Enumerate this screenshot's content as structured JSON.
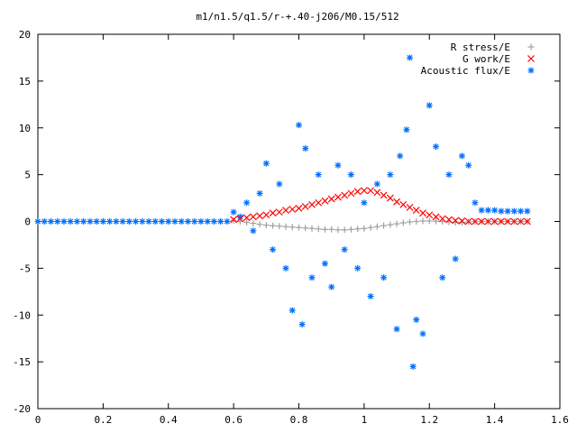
{
  "chart_data": {
    "type": "scatter",
    "title": "m1/n1.5/q1.5/r-+.40-j206/M0.15/512",
    "xlabel": "",
    "ylabel": "",
    "xlim": [
      0,
      1.6
    ],
    "ylim": [
      -20,
      20
    ],
    "x_ticks": [
      "0",
      "0.2",
      "0.4",
      "0.6",
      "0.8",
      "1",
      "1.2",
      "1.4",
      "1.6"
    ],
    "y_ticks": [
      "20",
      "15",
      "10",
      "5",
      "0",
      "-5",
      "-10",
      "-15",
      "-20"
    ],
    "legend_position": "top-right",
    "grid": false,
    "series": [
      {
        "name": "R stress/E",
        "marker": "plus",
        "color": "#a0a0a0",
        "x": [
          0.6,
          0.62,
          0.64,
          0.66,
          0.68,
          0.7,
          0.72,
          0.74,
          0.76,
          0.78,
          0.8,
          0.82,
          0.84,
          0.86,
          0.88,
          0.9,
          0.92,
          0.94,
          0.96,
          0.98,
          1.0,
          1.02,
          1.04,
          1.06,
          1.08,
          1.1,
          1.12,
          1.14,
          1.16,
          1.18,
          1.2,
          1.22,
          1.24,
          1.26,
          1.28,
          1.3,
          1.32,
          1.34,
          1.36,
          1.38,
          1.4,
          1.42,
          1.44,
          1.46,
          1.48,
          1.5
        ],
        "y": [
          0.1,
          0.0,
          -0.1,
          -0.2,
          -0.3,
          -0.4,
          -0.45,
          -0.5,
          -0.55,
          -0.6,
          -0.65,
          -0.7,
          -0.75,
          -0.8,
          -0.85,
          -0.85,
          -0.9,
          -0.9,
          -0.85,
          -0.8,
          -0.75,
          -0.65,
          -0.55,
          -0.45,
          -0.35,
          -0.25,
          -0.15,
          -0.05,
          0.0,
          0.05,
          0.05,
          0.03,
          0.0,
          -0.05,
          -0.1,
          -0.1,
          -0.05,
          0.0,
          0.0,
          0.0,
          0.0,
          0.0,
          0.0,
          0.0,
          0.0,
          0.0
        ]
      },
      {
        "name": "G work/E",
        "marker": "cross",
        "color": "#ff0000",
        "x": [
          0.6,
          0.62,
          0.64,
          0.66,
          0.68,
          0.7,
          0.72,
          0.74,
          0.76,
          0.78,
          0.8,
          0.82,
          0.84,
          0.86,
          0.88,
          0.9,
          0.92,
          0.94,
          0.96,
          0.98,
          1.0,
          1.02,
          1.04,
          1.06,
          1.08,
          1.1,
          1.12,
          1.14,
          1.16,
          1.18,
          1.2,
          1.22,
          1.24,
          1.26,
          1.28,
          1.3,
          1.32,
          1.34,
          1.36,
          1.38,
          1.4,
          1.42,
          1.44,
          1.46,
          1.48,
          1.5
        ],
        "y": [
          0.2,
          0.3,
          0.4,
          0.5,
          0.6,
          0.7,
          0.9,
          1.0,
          1.2,
          1.3,
          1.4,
          1.6,
          1.8,
          2.0,
          2.2,
          2.4,
          2.6,
          2.8,
          3.0,
          3.2,
          3.3,
          3.3,
          3.1,
          2.8,
          2.5,
          2.1,
          1.8,
          1.5,
          1.2,
          0.9,
          0.7,
          0.5,
          0.3,
          0.2,
          0.1,
          0.05,
          0.0,
          0.0,
          0.0,
          0.0,
          0.0,
          0.0,
          0.0,
          0.0,
          0.0,
          0.0
        ]
      },
      {
        "name": "Acoustic flux/E",
        "marker": "star",
        "color": "#0070ff",
        "x": [
          0.0,
          0.02,
          0.04,
          0.06,
          0.08,
          0.1,
          0.12,
          0.14,
          0.16,
          0.18,
          0.2,
          0.22,
          0.24,
          0.26,
          0.28,
          0.3,
          0.32,
          0.34,
          0.36,
          0.38,
          0.4,
          0.42,
          0.44,
          0.46,
          0.48,
          0.5,
          0.52,
          0.54,
          0.56,
          0.58,
          0.6,
          0.62,
          0.64,
          0.66,
          0.68,
          0.7,
          0.72,
          0.74,
          0.76,
          0.78,
          0.8,
          0.81,
          0.82,
          0.84,
          0.86,
          0.88,
          0.9,
          0.92,
          0.94,
          0.96,
          0.98,
          1.0,
          1.02,
          1.04,
          1.06,
          1.08,
          1.1,
          1.11,
          1.13,
          1.14,
          1.15,
          1.16,
          1.18,
          1.2,
          1.22,
          1.24,
          1.26,
          1.28,
          1.3,
          1.32,
          1.34,
          1.36,
          1.38,
          1.4,
          1.42,
          1.44,
          1.46,
          1.48,
          1.5
        ],
        "y": [
          0,
          0,
          0,
          0,
          0,
          0,
          0,
          0,
          0,
          0,
          0,
          0,
          0,
          0,
          0,
          0,
          0,
          0,
          0,
          0,
          0,
          0,
          0,
          0,
          0,
          0,
          0,
          0,
          0,
          0,
          1.0,
          0.5,
          2.0,
          -1.0,
          3.0,
          6.2,
          -3.0,
          4.0,
          -5.0,
          -9.5,
          10.3,
          -11.0,
          7.8,
          -6.0,
          5.0,
          -4.5,
          -7.0,
          6.0,
          -3.0,
          5.0,
          -5.0,
          2.0,
          -8.0,
          4.0,
          -6.0,
          5.0,
          -11.5,
          7.0,
          9.8,
          17.5,
          -15.5,
          -10.5,
          -12.0,
          12.4,
          8.0,
          -6.0,
          5.0,
          -4.0,
          7.0,
          6.0,
          2.0,
          1.2,
          1.2,
          1.2,
          1.1,
          1.1,
          1.1,
          1.1,
          1.1
        ]
      }
    ]
  }
}
